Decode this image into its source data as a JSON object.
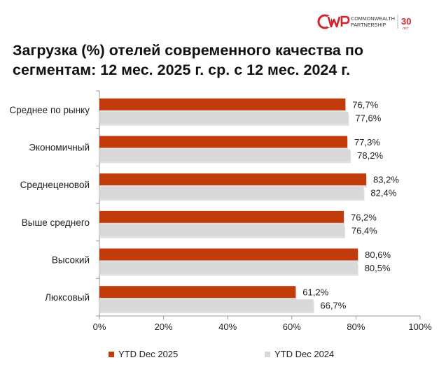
{
  "brand": {
    "top": "COMMONWEALTH",
    "bottom": "PARTNERSHIP",
    "years": "30",
    "years_sub": "ЛЕТ"
  },
  "colors": {
    "series1": "#c23b0a",
    "series2": "#d9d9d9",
    "axis": "#999999",
    "text": "#222222"
  },
  "chart_data": {
    "type": "bar",
    "orientation": "horizontal",
    "title_line1": "Загрузка (%) отелей современного качества по",
    "title_line2": "сегментам: 12 мес. 2025 г. ср. с 12 мес. 2024 г.",
    "categories": [
      "Среднее по рынку",
      "Экономичный",
      "Среднеценовой",
      "Выше среднего",
      "Высокий",
      "Люксовый"
    ],
    "series": [
      {
        "name": "YTD Dec 2025",
        "values": [
          76.7,
          77.3,
          83.2,
          76.2,
          80.6,
          61.2
        ],
        "labels": [
          "76,7%",
          "77,3%",
          "83,2%",
          "76,2%",
          "80,6%",
          "61,2%"
        ]
      },
      {
        "name": "YTD Dec 2024",
        "values": [
          77.6,
          78.2,
          82.4,
          76.4,
          80.5,
          66.7
        ],
        "labels": [
          "77,6%",
          "78,2%",
          "82,4%",
          "76,4%",
          "80,5%",
          "66,7%"
        ]
      }
    ],
    "xlim": [
      0,
      100
    ],
    "xticks": [
      0,
      20,
      40,
      60,
      80,
      100
    ],
    "xtick_labels": [
      "0%",
      "20%",
      "40%",
      "60%",
      "80%",
      "100%"
    ],
    "legend_position": "bottom"
  }
}
